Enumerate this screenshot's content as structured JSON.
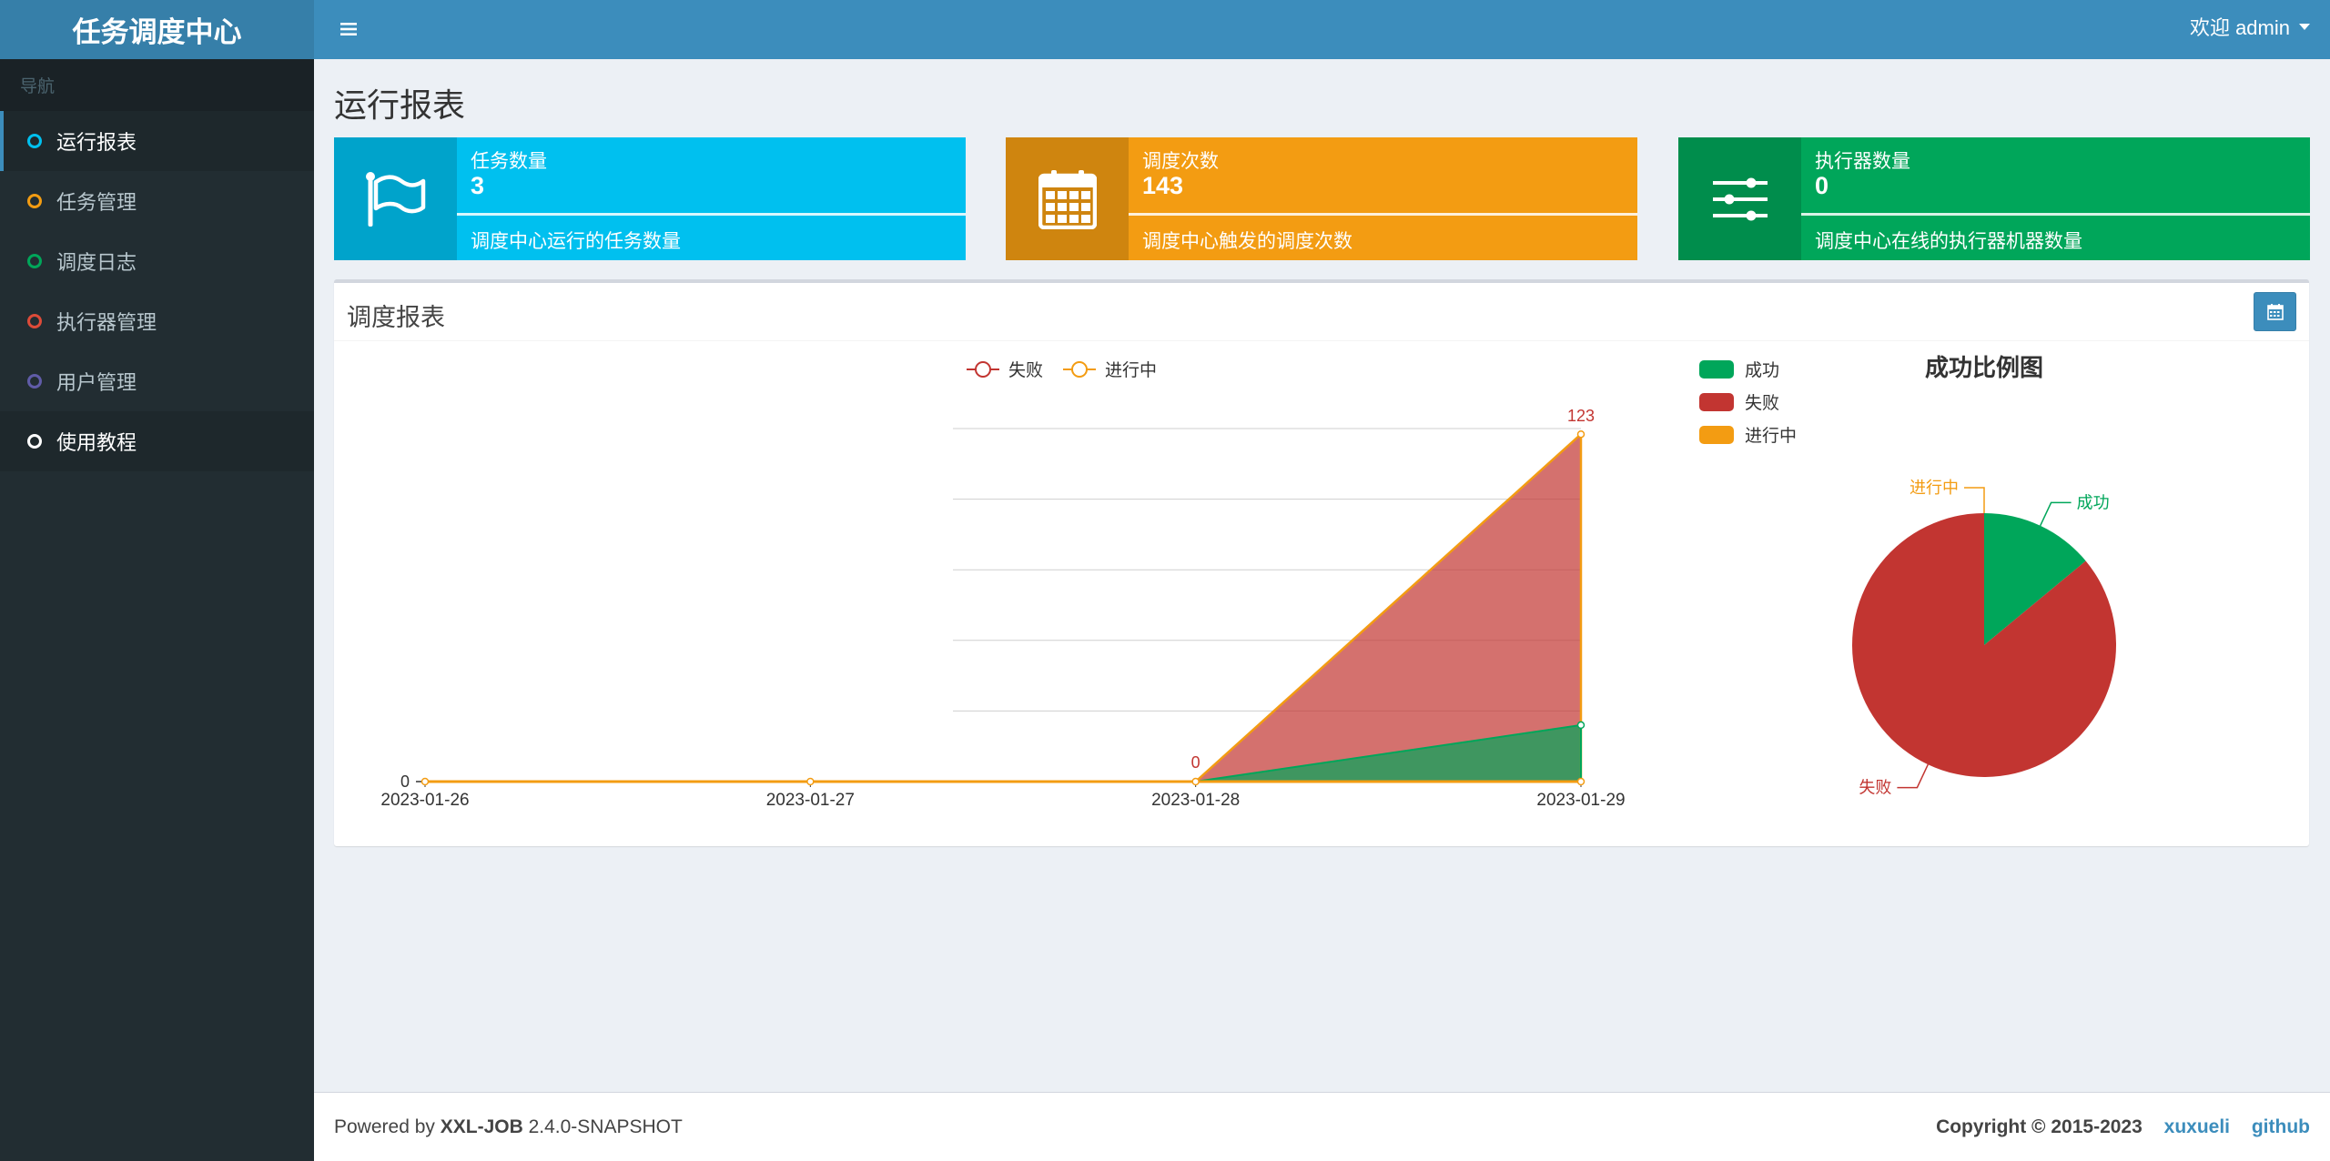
{
  "app": {
    "title": "任务调度中心"
  },
  "header": {
    "welcome": "欢迎 admin"
  },
  "sidebar": {
    "header": "导航",
    "items": [
      {
        "label": "运行报表",
        "color": "#00c0ef"
      },
      {
        "label": "任务管理",
        "color": "#f39c12"
      },
      {
        "label": "调度日志",
        "color": "#00a65a"
      },
      {
        "label": "执行器管理",
        "color": "#dd4b39"
      },
      {
        "label": "用户管理",
        "color": "#605ca8"
      },
      {
        "label": "使用教程",
        "color": "#ffffff"
      }
    ]
  },
  "page": {
    "title": "运行报表"
  },
  "cards": [
    {
      "label": "任务数量",
      "value": "3",
      "desc": "调度中心运行的任务数量",
      "icon": "flag-icon",
      "color": "#00c0ef",
      "icon_bg": "#00a3cb"
    },
    {
      "label": "调度次数",
      "value": "143",
      "desc": "调度中心触发的调度次数",
      "icon": "calendar-icon",
      "color": "#f39c12",
      "icon_bg": "#cf850f"
    },
    {
      "label": "执行器数量",
      "value": "0",
      "desc": "调度中心在线的执行器机器数量",
      "icon": "sliders-icon",
      "color": "#00a65a",
      "icon_bg": "#008d4c"
    }
  ],
  "report": {
    "title": "调度报表"
  },
  "chart_data": [
    {
      "type": "area",
      "x": [
        "2023-01-26",
        "2023-01-27",
        "2023-01-28",
        "2023-01-29"
      ],
      "series": [
        {
          "name": "成功",
          "values": [
            0,
            0,
            0,
            20
          ],
          "color": "#00a65a"
        },
        {
          "name": "失败",
          "values": [
            0,
            0,
            0,
            123
          ],
          "color": "#c23531"
        },
        {
          "name": "进行中",
          "values": [
            0,
            0,
            0,
            0
          ],
          "color": "#f39c12"
        }
      ],
      "legend": [
        "失败",
        "进行中"
      ],
      "legend_position": "top",
      "labels": [
        "0",
        "0",
        "123"
      ],
      "ylim": [
        0,
        125
      ],
      "grid": true
    },
    {
      "type": "pie",
      "title": "成功比例图",
      "legend_position": "top-left",
      "slices": [
        {
          "name": "成功",
          "value": 20,
          "color": "#00a65a"
        },
        {
          "name": "失败",
          "value": 123,
          "color": "#c23531"
        },
        {
          "name": "进行中",
          "value": 0,
          "color": "#f39c12"
        }
      ]
    }
  ],
  "footer": {
    "powered_prefix": "Powered by ",
    "product": "XXL-JOB",
    "version": " 2.4.0-SNAPSHOT",
    "copyright": "Copyright © 2015-2023",
    "links": [
      "xuxueli",
      "github"
    ]
  }
}
